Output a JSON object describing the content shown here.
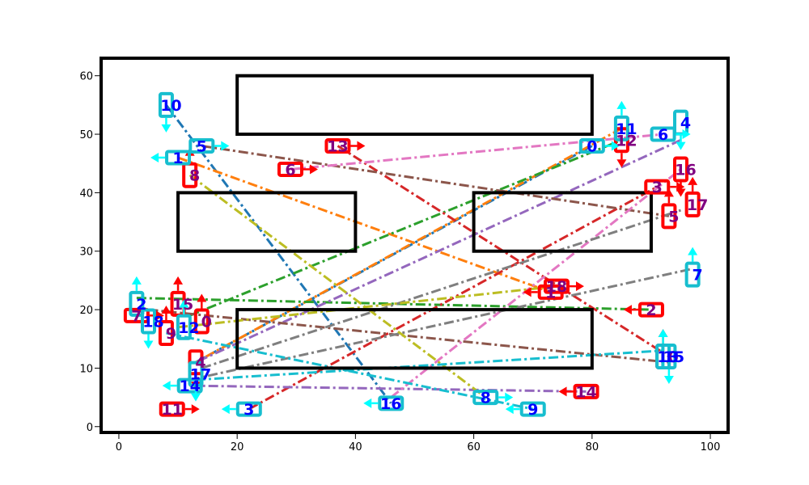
{
  "chart_data": {
    "type": "diagram",
    "title": "",
    "xlabel": "",
    "ylabel": "",
    "xlim": [
      -3,
      103
    ],
    "ylim": [
      -1,
      63
    ],
    "xticks": [
      0,
      20,
      40,
      60,
      80,
      100
    ],
    "yticks": [
      0,
      10,
      20,
      30,
      40,
      50,
      60
    ],
    "tick_labels_x": [
      "0",
      "20",
      "40",
      "60",
      "80",
      "100"
    ],
    "tick_labels_y": [
      "0",
      "10",
      "20",
      "30",
      "40",
      "50",
      "60"
    ],
    "obstacles": [
      {
        "x0": 20,
        "y0": 50,
        "x1": 80,
        "y1": 60
      },
      {
        "x0": 10,
        "y0": 30,
        "x1": 40,
        "y1": 40
      },
      {
        "x0": 60,
        "y0": 30,
        "x1": 90,
        "y1": 40
      },
      {
        "x0": 20,
        "y0": 10,
        "x1": 80,
        "y1": 20
      }
    ],
    "colors": {
      "cyan_boxes": "#17becf",
      "red_boxes": "#ff0000",
      "cyan_arrow": "#00ffff",
      "red_arrow": "#ff0000",
      "blue_text": "#0000ff",
      "purple_text": "#800080"
    },
    "cyan_nodes": [
      {
        "id": "0",
        "x": 80,
        "y": 48,
        "dir": "right"
      },
      {
        "id": "1",
        "x": 10,
        "y": 46,
        "dir": "left"
      },
      {
        "id": "2",
        "x": 3,
        "y": 21,
        "dir": "up"
      },
      {
        "id": "3",
        "x": 22,
        "y": 3,
        "dir": "left"
      },
      {
        "id": "4",
        "x": 95,
        "y": 52,
        "dir": "down"
      },
      {
        "id": "5",
        "x": 14,
        "y": 48,
        "dir": "right"
      },
      {
        "id": "6",
        "x": 92,
        "y": 50,
        "dir": "right"
      },
      {
        "id": "7",
        "x": 97,
        "y": 26,
        "dir": "up"
      },
      {
        "id": "8",
        "x": 62,
        "y": 5,
        "dir": "right"
      },
      {
        "id": "9",
        "x": 70,
        "y": 3,
        "dir": "left"
      },
      {
        "id": "10",
        "x": 8,
        "y": 55,
        "dir": "down"
      },
      {
        "id": "11",
        "x": 85,
        "y": 51,
        "dir": "up"
      },
      {
        "id": "12",
        "x": 11,
        "y": 17,
        "dir": "up"
      },
      {
        "id": "13",
        "x": 92,
        "y": 12,
        "dir": "up"
      },
      {
        "id": "14",
        "x": 12,
        "y": 7,
        "dir": "left"
      },
      {
        "id": "15",
        "x": 93,
        "y": 12,
        "dir": "down"
      },
      {
        "id": "16",
        "x": 46,
        "y": 4,
        "dir": "left"
      },
      {
        "id": "17",
        "x": 13,
        "y": 9,
        "dir": "down"
      },
      {
        "id": "18",
        "x": 5,
        "y": 18,
        "dir": "down"
      }
    ],
    "red_nodes": [
      {
        "id": "0",
        "x": 14,
        "y": 18,
        "dir": "up"
      },
      {
        "id": "1",
        "x": 73,
        "y": 23,
        "dir": "left"
      },
      {
        "id": "2",
        "x": 90,
        "y": 20,
        "dir": "left"
      },
      {
        "id": "3",
        "x": 91,
        "y": 41,
        "dir": "right"
      },
      {
        "id": "4",
        "x": 13,
        "y": 11,
        "dir": "down"
      },
      {
        "id": "5",
        "x": 93,
        "y": 36,
        "dir": "up"
      },
      {
        "id": "6",
        "x": 29,
        "y": 44,
        "dir": "right"
      },
      {
        "id": "7",
        "x": 3,
        "y": 19,
        "dir": "right"
      },
      {
        "id": "8",
        "x": 12,
        "y": 43,
        "dir": "up"
      },
      {
        "id": "9",
        "x": 8,
        "y": 16,
        "dir": "up"
      },
      {
        "id": "10",
        "x": 92,
        "y": 12,
        "dir": "up"
      },
      {
        "id": "11",
        "x": 9,
        "y": 3,
        "dir": "right"
      },
      {
        "id": "12",
        "x": 85,
        "y": 49,
        "dir": "down"
      },
      {
        "id": "13",
        "x": 37,
        "y": 48,
        "dir": "right"
      },
      {
        "id": "14",
        "x": 79,
        "y": 6,
        "dir": "left"
      },
      {
        "id": "15",
        "x": 10,
        "y": 21,
        "dir": "up"
      },
      {
        "id": "16",
        "x": 95,
        "y": 44,
        "dir": "down"
      },
      {
        "id": "17",
        "x": 97,
        "y": 38,
        "dir": "up"
      },
      {
        "id": "18",
        "x": 74,
        "y": 24,
        "dir": "right"
      }
    ],
    "edges": [
      {
        "from": [
          80,
          48
        ],
        "to": [
          13,
          11
        ],
        "color": "#1f77b4"
      },
      {
        "from": [
          8,
          55
        ],
        "to": [
          46,
          4
        ],
        "color": "#1f77b4"
      },
      {
        "from": [
          10,
          46
        ],
        "to": [
          73,
          23
        ],
        "color": "#ff7f0e"
      },
      {
        "from": [
          85,
          51
        ],
        "to": [
          13,
          11
        ],
        "color": "#ff7f0e"
      },
      {
        "from": [
          3,
          22
        ],
        "to": [
          90,
          20
        ],
        "color": "#2ca02c"
      },
      {
        "from": [
          12,
          19
        ],
        "to": [
          85,
          49
        ],
        "color": "#2ca02c"
      },
      {
        "from": [
          22,
          3
        ],
        "to": [
          91,
          41
        ],
        "color": "#d62728"
      },
      {
        "from": [
          37,
          48
        ],
        "to": [
          93,
          12
        ],
        "color": "#d62728"
      },
      {
        "from": [
          95,
          49
        ],
        "to": [
          13,
          11
        ],
        "color": "#9467bd"
      },
      {
        "from": [
          12,
          7
        ],
        "to": [
          79,
          6
        ],
        "color": "#9467bd"
      },
      {
        "from": [
          14,
          48
        ],
        "to": [
          93,
          36
        ],
        "color": "#8c564b"
      },
      {
        "from": [
          5,
          20
        ],
        "to": [
          93,
          11
        ],
        "color": "#8c564b"
      },
      {
        "from": [
          29,
          44
        ],
        "to": [
          92,
          50
        ],
        "color": "#e377c2"
      },
      {
        "from": [
          46,
          5
        ],
        "to": [
          95,
          44
        ],
        "color": "#e377c2"
      },
      {
        "from": [
          12,
          8
        ],
        "to": [
          97,
          27
        ],
        "color": "#7f7f7f"
      },
      {
        "from": [
          14,
          10
        ],
        "to": [
          95,
          37
        ],
        "color": "#7f7f7f"
      },
      {
        "from": [
          12,
          43
        ],
        "to": [
          62,
          5
        ],
        "color": "#bcbd22"
      },
      {
        "from": [
          10,
          17
        ],
        "to": [
          74,
          24
        ],
        "color": "#bcbd22"
      },
      {
        "from": [
          8,
          16
        ],
        "to": [
          70,
          3
        ],
        "color": "#17becf"
      },
      {
        "from": [
          13,
          8
        ],
        "to": [
          92,
          13
        ],
        "color": "#17becf"
      }
    ]
  }
}
